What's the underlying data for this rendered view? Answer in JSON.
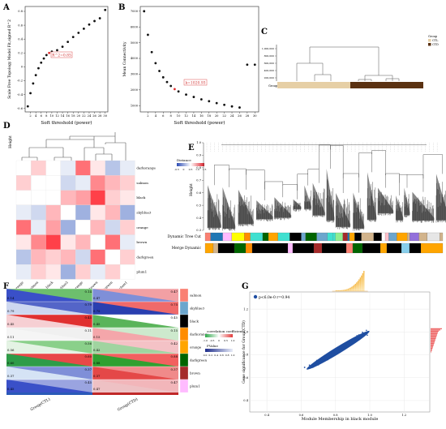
{
  "panel_labels": {
    "a": "A",
    "b": "B",
    "c": "C",
    "d": "D",
    "e": "E",
    "f": "F",
    "g": "G"
  },
  "chart_data": [
    {
      "panel": "A",
      "type": "scatter",
      "xlabel": "Soft threshold (power)",
      "ylabel": "Scale Free Topology Model Fit,signed R^2",
      "xticks": [
        2,
        4,
        6,
        8,
        10,
        12,
        14,
        16,
        18,
        20,
        22,
        24,
        26,
        28,
        30
      ],
      "yticks": [
        -0.6,
        -0.4,
        -0.2,
        0.0,
        0.2,
        0.4,
        0.6,
        0.8
      ],
      "ylim": [
        -0.65,
        0.87
      ],
      "x": [
        1,
        2,
        3,
        4,
        5,
        6,
        7,
        8,
        9,
        10,
        12,
        14,
        16,
        18,
        20,
        22,
        24,
        26,
        28,
        30
      ],
      "y": [
        -0.57,
        -0.38,
        -0.24,
        -0.12,
        -0.02,
        0.06,
        0.12,
        0.17,
        0.2,
        0.22,
        0.24,
        0.29,
        0.36,
        0.43,
        0.49,
        0.55,
        0.61,
        0.66,
        0.7,
        0.82
      ],
      "annotation": "R^2=0.85",
      "annotation_x": 9
    },
    {
      "panel": "B",
      "type": "scatter",
      "xlabel": "Soft threshold (power)",
      "ylabel": "Mean Connectivity",
      "xticks": [
        2,
        4,
        6,
        8,
        10,
        12,
        14,
        16,
        18,
        20,
        22,
        24,
        26,
        28,
        30
      ],
      "yticks": [
        1000,
        2000,
        3000,
        4000,
        5000,
        6000,
        7000
      ],
      "ylim": [
        600,
        7300
      ],
      "x": [
        1,
        2,
        3,
        4,
        5,
        6,
        7,
        8,
        9,
        10,
        12,
        14,
        16,
        18,
        20,
        22,
        24,
        26,
        28,
        30
      ],
      "y": [
        7000,
        5500,
        4400,
        3700,
        3200,
        2800,
        2500,
        2250,
        2050,
        1900,
        1700,
        1550,
        1400,
        1280,
        1160,
        1050,
        950,
        880,
        3600,
        3600
      ],
      "annotation": "k=1020.93",
      "annotation_x": 9
    },
    {
      "panel": "C",
      "type": "dendrogram",
      "yticks": [
        "1,000,000",
        "800,000",
        "600,000",
        "400,000",
        "200,000"
      ],
      "bar_label": "Group",
      "legend_title": "Group",
      "legend": [
        {
          "name": "CTL",
          "color": "#e6cfa5"
        },
        {
          "name": "CTD",
          "color": "#5b3212"
        }
      ]
    },
    {
      "panel": "D",
      "type": "heatmap",
      "ylabel": "Height",
      "modules": [
        "darkorange",
        "salmon",
        "black",
        "skyblue3",
        "orange",
        "brown",
        "darkgreen",
        "plum1"
      ],
      "legend_title": "Distance",
      "legend_ticks": [
        "-0.5",
        "0",
        "0.5",
        "1.0",
        "1.5"
      ],
      "matrix": [
        [
          2.0,
          1.2,
          1.0,
          0.9,
          1.6,
          1.1,
          0.7,
          0.9
        ],
        [
          1.2,
          2.0,
          1.0,
          0.8,
          0.9,
          1.5,
          1.3,
          1.2
        ],
        [
          1.0,
          1.0,
          2.0,
          1.3,
          1.4,
          1.8,
          1.2,
          1.1
        ],
        [
          0.9,
          0.8,
          1.3,
          2.0,
          0.6,
          1.1,
          1.3,
          0.6
        ],
        [
          1.6,
          0.9,
          1.4,
          0.6,
          2.0,
          1.3,
          0.8,
          1.2
        ],
        [
          1.1,
          1.5,
          1.8,
          1.1,
          1.3,
          2.0,
          1.6,
          0.9
        ],
        [
          0.7,
          1.3,
          1.2,
          1.3,
          0.8,
          1.6,
          2.0,
          1.2
        ],
        [
          0.9,
          1.2,
          1.1,
          0.6,
          1.2,
          0.9,
          1.2,
          2.0
        ]
      ]
    },
    {
      "panel": "E",
      "type": "dendrogram",
      "ylabel": "Height",
      "yticks": [
        0.3,
        0.4,
        0.5,
        0.6,
        0.7,
        0.8,
        0.9,
        1.0
      ],
      "ylim": [
        0.3,
        1.0
      ],
      "row_labels": [
        "Dynamic Tree Cut",
        "Merge Dynamic"
      ]
    },
    {
      "panel": "F",
      "type": "heatmap",
      "modules": [
        "salmon",
        "skyblue3",
        "black",
        "darkorange",
        "orange",
        "darkgreen",
        "brown",
        "plum1"
      ],
      "groups": [
        "Group(CTL)",
        "Group(CTD)"
      ],
      "left_values": [
        [
          "0.14",
          "0.14"
        ],
        [
          "0.79",
          "0.79"
        ],
        [
          "0.45",
          "0.45"
        ],
        [
          "0.11",
          "0.11"
        ],
        [
          "0.56",
          "0.56"
        ],
        [
          "0.60",
          "0.60"
        ],
        [
          "0.37",
          "0.37"
        ],
        [
          "0.45",
          "0.45"
        ]
      ],
      "right_values": [
        [
          "0.47",
          "0.47"
        ],
        [
          "0.75",
          "0.75"
        ],
        [
          "0.45",
          "0.45"
        ],
        [
          "0.15",
          "0.15"
        ],
        [
          "0.42",
          "0.42"
        ],
        [
          "0.88",
          "0.88"
        ],
        [
          "0.37",
          "0.37"
        ],
        [
          "0.47",
          "0.47"
        ]
      ],
      "legend_title": "correlation coefficient",
      "legend_ticks": [
        "-1.0",
        "-0.5",
        "0",
        "0.5",
        "1.0"
      ],
      "legend2_title": "PValue",
      "legend2_ticks": [
        "0.0",
        "0.2",
        "0.4",
        "0.6",
        "0.8",
        "1.0"
      ]
    },
    {
      "panel": "G",
      "type": "scatter",
      "xlabel": "Module Membership in black module",
      "ylabel": "Gene significance for Group(CTD)",
      "legend": "p<6.0e-0 r=0.94",
      "xticks": [
        0.4,
        0.6,
        0.8,
        1.0,
        1.2
      ],
      "yticks": [
        0.4,
        0.6,
        0.8,
        1.0,
        1.2
      ],
      "xlim": [
        0.3,
        1.35
      ],
      "ylim": [
        0.3,
        1.35
      ],
      "fit_from": [
        0.64,
        0.68
      ],
      "fit_to": [
        0.99,
        1.0
      ],
      "hist_top_peak": 0.97,
      "hist_right_peak": 0.99
    }
  ],
  "colors": {
    "module_colors": {
      "darkorange": "#ff8c00",
      "salmon": "#fa8072",
      "black": "#000000",
      "skyblue3": "#6ca6cd",
      "orange": "#ffa500",
      "brown": "#a52a2a",
      "darkgreen": "#006400",
      "plum1": "#ffbbff"
    }
  }
}
